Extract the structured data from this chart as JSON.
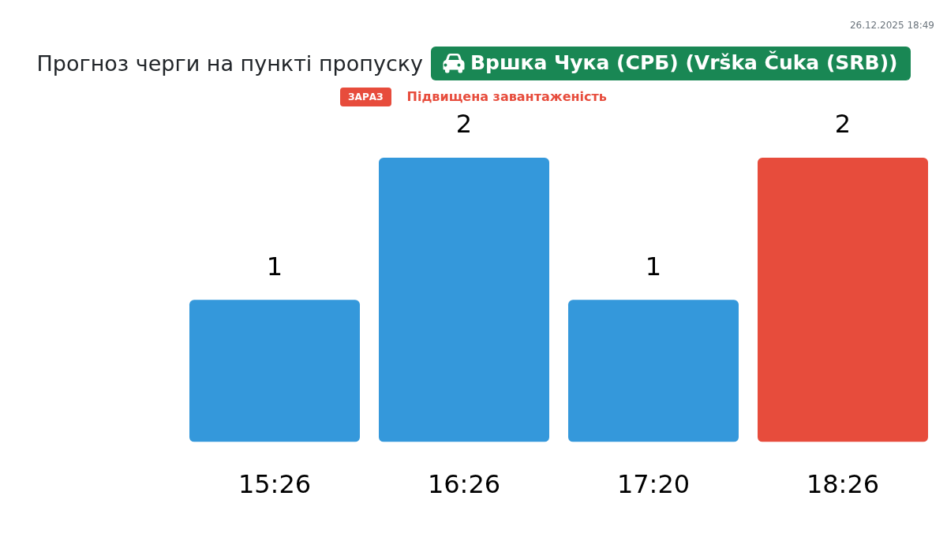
{
  "chart_data": {
    "type": "bar",
    "title": "Прогноз черги на пункті пропуску",
    "subtitle": "Вршка Чука (СРБ) (Vrška Čuka (SRB))",
    "categories": [
      "15:26",
      "16:26",
      "17:20",
      "18:26"
    ],
    "values": [
      1,
      2,
      1,
      2
    ],
    "colors": [
      "#3498db",
      "#3498db",
      "#3498db",
      "#e74c3c"
    ],
    "data_labels": true,
    "tick_labels": "x",
    "grid": false,
    "legend": false,
    "annotations": [
      "ЗАРАЗ",
      "Підвищена завантаженість",
      "26.12.2025 18:49"
    ]
  }
}
